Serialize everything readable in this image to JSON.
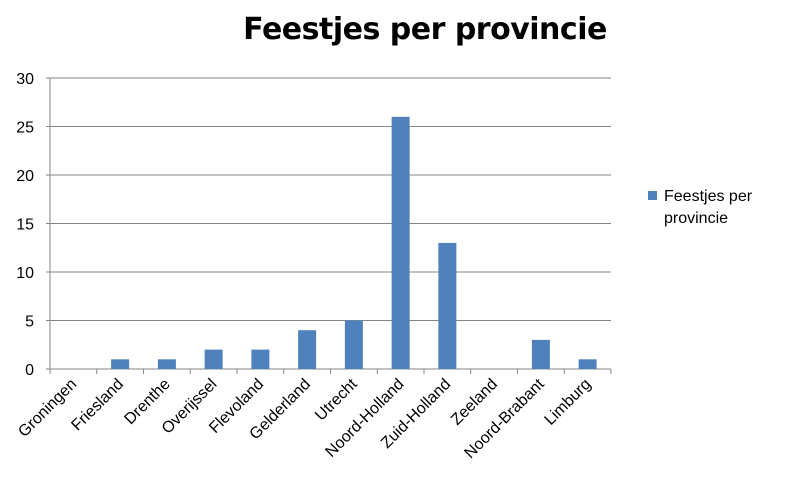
{
  "chart_data": {
    "type": "bar",
    "title": "Feestjes per provincie",
    "categories": [
      "Groningen",
      "Friesland",
      "Drenthe",
      "Overijssel",
      "Flevoland",
      "Gelderland",
      "Utrecht",
      "Noord-Holland",
      "Zuid-Holland",
      "Zeeland",
      "Noord-Brabant",
      "Limburg"
    ],
    "series": [
      {
        "name": "Feestjes per provincie",
        "values": [
          0,
          1,
          1,
          2,
          2,
          4,
          5,
          26,
          13,
          0,
          3,
          1
        ],
        "color": "#4f81bd"
      }
    ],
    "xlabel": "",
    "ylabel": "",
    "ylim": [
      0,
      30
    ],
    "yticks": [
      0,
      5,
      10,
      15,
      20,
      25,
      30
    ],
    "grid": true,
    "legend_position": "right"
  }
}
